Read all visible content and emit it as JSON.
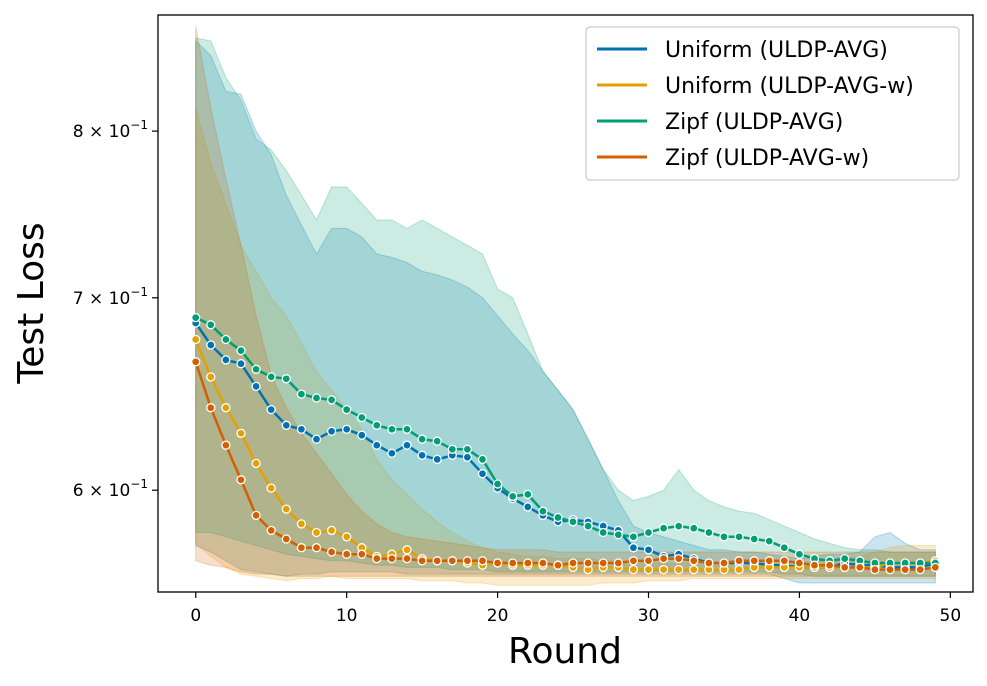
{
  "chart_data": {
    "type": "line",
    "title": "",
    "xlabel": "Round",
    "ylabel": "Test Loss",
    "xlim": [
      -2.5,
      51.5
    ],
    "ylim": [
      0.553,
      0.878
    ],
    "yscale": "log",
    "grid": false,
    "legend_position": "top-right",
    "xticks": [
      0,
      10,
      20,
      30,
      40,
      50
    ],
    "xtick_labels": [
      "0",
      "10",
      "20",
      "30",
      "40",
      "50"
    ],
    "yticks": [
      0.6,
      0.7,
      0.8
    ],
    "ytick_labels": [
      {
        "base": "6 × 10",
        "exp": "−1"
      },
      {
        "base": "7 × 10",
        "exp": "−1"
      },
      {
        "base": "8 × 10",
        "exp": "−1"
      }
    ],
    "x": [
      0,
      1,
      2,
      3,
      4,
      5,
      6,
      7,
      8,
      9,
      10,
      11,
      12,
      13,
      14,
      15,
      16,
      17,
      18,
      19,
      20,
      21,
      22,
      23,
      24,
      25,
      26,
      27,
      28,
      29,
      30,
      31,
      32,
      33,
      34,
      35,
      36,
      37,
      38,
      39,
      40,
      41,
      42,
      43,
      44,
      45,
      46,
      47,
      48,
      49
    ],
    "series": [
      {
        "name": "Uniform (ULDP-AVG)",
        "color": "#0072b2",
        "values": [
          0.686,
          0.674,
          0.666,
          0.664,
          0.652,
          0.64,
          0.632,
          0.63,
          0.625,
          0.629,
          0.63,
          0.627,
          0.622,
          0.618,
          0.622,
          0.617,
          0.615,
          0.617,
          0.616,
          0.608,
          0.601,
          0.596,
          0.592,
          0.588,
          0.585,
          0.586,
          0.585,
          0.583,
          0.581,
          0.573,
          0.572,
          0.569,
          0.57,
          0.568,
          0.566,
          0.566,
          0.566,
          0.566,
          0.565,
          0.565,
          0.564,
          0.564,
          0.564,
          0.566,
          0.565,
          0.565,
          0.564,
          0.564,
          0.564,
          0.566
        ],
        "upper": [
          0.86,
          0.85,
          0.826,
          0.824,
          0.8,
          0.785,
          0.76,
          0.742,
          0.725,
          0.74,
          0.74,
          0.735,
          0.725,
          0.723,
          0.72,
          0.715,
          0.713,
          0.71,
          0.706,
          0.7,
          0.69,
          0.68,
          0.671,
          0.66,
          0.65,
          0.64,
          0.625,
          0.61,
          0.595,
          0.583,
          0.58,
          0.578,
          0.576,
          0.574,
          0.572,
          0.572,
          0.571,
          0.571,
          0.57,
          0.569,
          0.568,
          0.569,
          0.57,
          0.57,
          0.571,
          0.578,
          0.58,
          0.575,
          0.572,
          0.572
        ],
        "lower": [
          0.574,
          0.571,
          0.567,
          0.563,
          0.562,
          0.561,
          0.56,
          0.561,
          0.561,
          0.562,
          0.562,
          0.562,
          0.562,
          0.562,
          0.561,
          0.561,
          0.561,
          0.561,
          0.561,
          0.561,
          0.561,
          0.561,
          0.561,
          0.561,
          0.561,
          0.561,
          0.561,
          0.561,
          0.561,
          0.561,
          0.561,
          0.561,
          0.561,
          0.561,
          0.561,
          0.561,
          0.561,
          0.561,
          0.561,
          0.559,
          0.557,
          0.557,
          0.557,
          0.557,
          0.557,
          0.557,
          0.557,
          0.557,
          0.557,
          0.557
        ]
      },
      {
        "name": "Uniform (ULDP-AVG-w)",
        "color": "#e69f00",
        "values": [
          0.677,
          0.657,
          0.641,
          0.628,
          0.613,
          0.601,
          0.591,
          0.584,
          0.58,
          0.581,
          0.578,
          0.573,
          0.569,
          0.57,
          0.572,
          0.568,
          0.567,
          0.567,
          0.566,
          0.565,
          0.566,
          0.565,
          0.565,
          0.565,
          0.565,
          0.564,
          0.563,
          0.564,
          0.564,
          0.563,
          0.563,
          0.563,
          0.563,
          0.563,
          0.563,
          0.563,
          0.563,
          0.564,
          0.564,
          0.564,
          0.564,
          0.564,
          0.564,
          0.564,
          0.564,
          0.564,
          0.566,
          0.566,
          0.566,
          0.567
        ],
        "upper": [
          0.815,
          0.78,
          0.755,
          0.73,
          0.715,
          0.7,
          0.69,
          0.675,
          0.66,
          0.65,
          0.64,
          0.63,
          0.615,
          0.605,
          0.598,
          0.591,
          0.585,
          0.58,
          0.576,
          0.573,
          0.571,
          0.57,
          0.569,
          0.569,
          0.568,
          0.568,
          0.568,
          0.567,
          0.567,
          0.567,
          0.566,
          0.566,
          0.566,
          0.566,
          0.566,
          0.566,
          0.566,
          0.566,
          0.566,
          0.566,
          0.566,
          0.567,
          0.567,
          0.568,
          0.569,
          0.571,
          0.573,
          0.574,
          0.574,
          0.574
        ],
        "lower": [
          0.575,
          0.569,
          0.564,
          0.561,
          0.56,
          0.559,
          0.558,
          0.559,
          0.559,
          0.56,
          0.559,
          0.559,
          0.559,
          0.559,
          0.559,
          0.558,
          0.558,
          0.558,
          0.557,
          0.557,
          0.556,
          0.556,
          0.556,
          0.556,
          0.556,
          0.556,
          0.556,
          0.557,
          0.557,
          0.557,
          0.558,
          0.558,
          0.558,
          0.559,
          0.559,
          0.559,
          0.559,
          0.559,
          0.559,
          0.559,
          0.559,
          0.559,
          0.559,
          0.559,
          0.559,
          0.559,
          0.559,
          0.559,
          0.559,
          0.559
        ]
      },
      {
        "name": "Zipf (ULDP-AVG)",
        "color": "#009e73",
        "values": [
          0.689,
          0.685,
          0.677,
          0.671,
          0.661,
          0.657,
          0.656,
          0.648,
          0.646,
          0.645,
          0.64,
          0.636,
          0.632,
          0.63,
          0.63,
          0.625,
          0.624,
          0.62,
          0.62,
          0.615,
          0.603,
          0.597,
          0.598,
          0.59,
          0.587,
          0.585,
          0.583,
          0.58,
          0.579,
          0.578,
          0.58,
          0.582,
          0.583,
          0.582,
          0.58,
          0.578,
          0.578,
          0.577,
          0.576,
          0.573,
          0.57,
          0.568,
          0.567,
          0.568,
          0.567,
          0.566,
          0.566,
          0.566,
          0.566,
          0.566
        ],
        "upper": [
          0.862,
          0.86,
          0.835,
          0.82,
          0.795,
          0.788,
          0.775,
          0.76,
          0.745,
          0.765,
          0.765,
          0.755,
          0.745,
          0.745,
          0.74,
          0.745,
          0.74,
          0.735,
          0.73,
          0.725,
          0.705,
          0.7,
          0.68,
          0.66,
          0.65,
          0.64,
          0.625,
          0.61,
          0.6,
          0.595,
          0.597,
          0.6,
          0.61,
          0.6,
          0.595,
          0.592,
          0.59,
          0.589,
          0.586,
          0.583,
          0.58,
          0.577,
          0.575,
          0.573,
          0.572,
          0.572,
          0.571,
          0.571,
          0.571,
          0.571
        ],
        "lower": [
          0.58,
          0.58,
          0.578,
          0.576,
          0.574,
          0.572,
          0.57,
          0.569,
          0.568,
          0.567,
          0.567,
          0.566,
          0.565,
          0.565,
          0.564,
          0.564,
          0.564,
          0.563,
          0.563,
          0.563,
          0.562,
          0.562,
          0.562,
          0.562,
          0.562,
          0.562,
          0.562,
          0.562,
          0.562,
          0.562,
          0.562,
          0.562,
          0.562,
          0.562,
          0.562,
          0.562,
          0.562,
          0.562,
          0.562,
          0.561,
          0.561,
          0.56,
          0.56,
          0.56,
          0.56,
          0.56,
          0.56,
          0.56,
          0.56,
          0.56
        ]
      },
      {
        "name": "Zipf (ULDP-AVG-w)",
        "color": "#d55e00",
        "values": [
          0.665,
          0.641,
          0.622,
          0.605,
          0.588,
          0.581,
          0.577,
          0.573,
          0.573,
          0.571,
          0.57,
          0.57,
          0.568,
          0.568,
          0.568,
          0.567,
          0.567,
          0.567,
          0.567,
          0.567,
          0.566,
          0.566,
          0.566,
          0.566,
          0.565,
          0.566,
          0.566,
          0.566,
          0.566,
          0.567,
          0.567,
          0.568,
          0.568,
          0.567,
          0.566,
          0.566,
          0.567,
          0.567,
          0.567,
          0.567,
          0.566,
          0.565,
          0.565,
          0.564,
          0.564,
          0.563,
          0.563,
          0.563,
          0.563,
          0.564
        ],
        "upper": [
          0.87,
          0.815,
          0.77,
          0.73,
          0.69,
          0.658,
          0.641,
          0.628,
          0.618,
          0.608,
          0.598,
          0.59,
          0.584,
          0.58,
          0.578,
          0.577,
          0.576,
          0.575,
          0.574,
          0.573,
          0.572,
          0.572,
          0.572,
          0.572,
          0.571,
          0.571,
          0.571,
          0.571,
          0.571,
          0.571,
          0.571,
          0.571,
          0.571,
          0.571,
          0.571,
          0.571,
          0.571,
          0.571,
          0.571,
          0.571,
          0.571,
          0.571,
          0.571,
          0.571,
          0.571,
          0.571,
          0.571,
          0.571,
          0.571,
          0.571
        ],
        "lower": [
          0.567,
          0.565,
          0.564,
          0.562,
          0.561,
          0.561,
          0.56,
          0.56,
          0.56,
          0.56,
          0.56,
          0.56,
          0.56,
          0.56,
          0.56,
          0.56,
          0.56,
          0.56,
          0.56,
          0.56,
          0.56,
          0.56,
          0.56,
          0.56,
          0.56,
          0.56,
          0.56,
          0.56,
          0.56,
          0.56,
          0.56,
          0.56,
          0.56,
          0.56,
          0.56,
          0.56,
          0.56,
          0.56,
          0.56,
          0.56,
          0.56,
          0.56,
          0.56,
          0.56,
          0.56,
          0.56,
          0.56,
          0.56,
          0.56,
          0.56
        ]
      }
    ]
  }
}
